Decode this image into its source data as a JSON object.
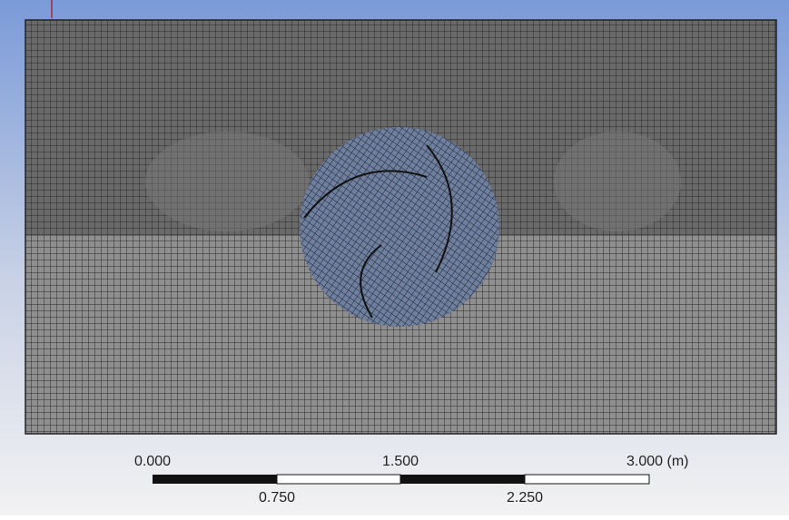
{
  "viewport": {
    "scale_bar": {
      "top_labels": [
        "0.000",
        "1.500",
        "3.000 (m)"
      ],
      "bottom_labels": [
        "0.750",
        "2.250"
      ]
    }
  }
}
